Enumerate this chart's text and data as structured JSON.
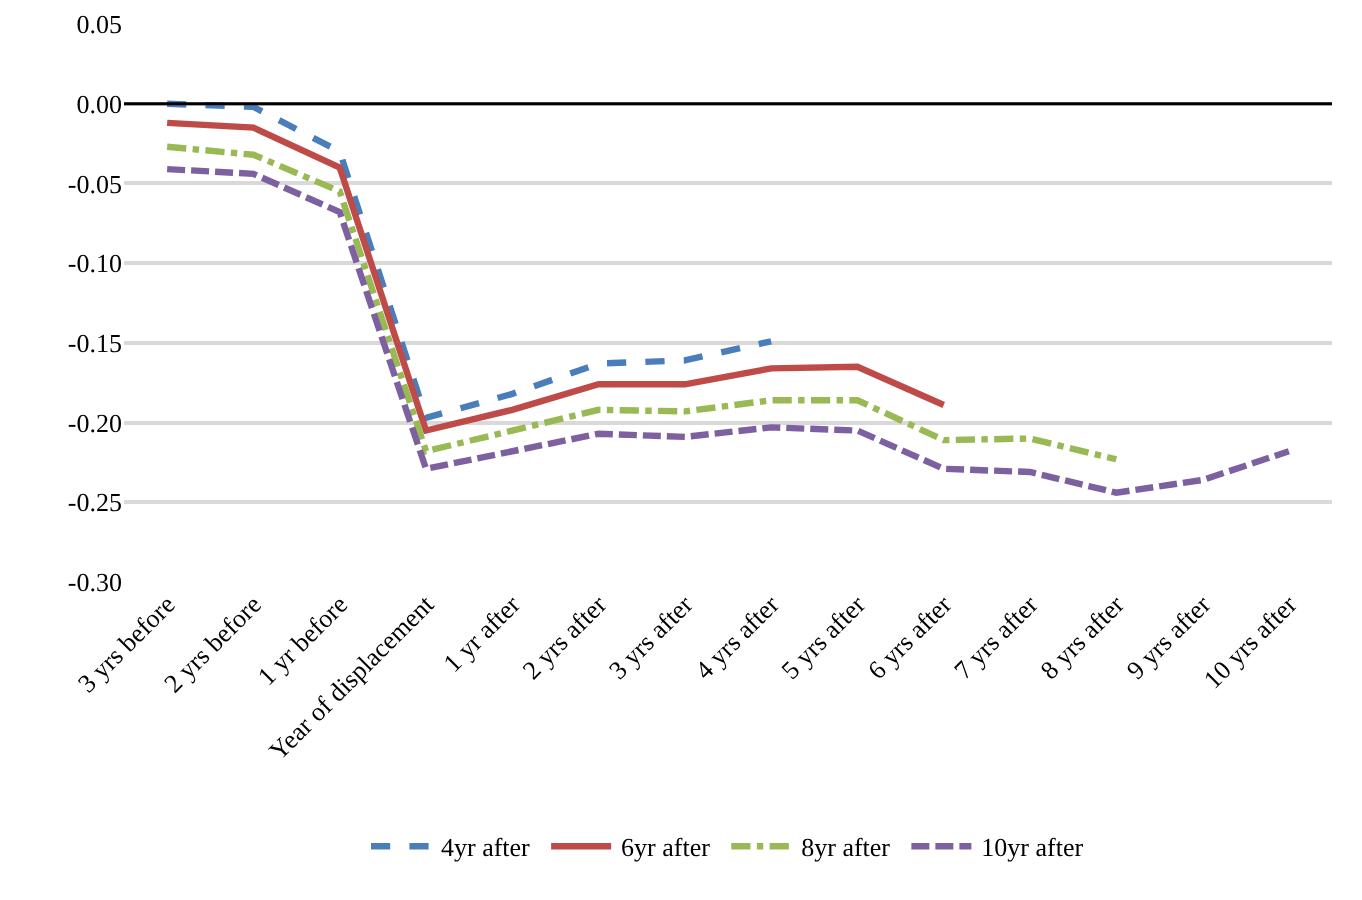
{
  "chart_data": {
    "type": "line",
    "categories": [
      "3 yrs before",
      "2 yrs before",
      "1 yr before",
      "Year of displacement",
      "1 yr after",
      "2 yrs after",
      "3 yrs after",
      "4 yrs after",
      "5 yrs after",
      "6 yrs after",
      "7 yrs after",
      "8 yrs after",
      "9 yrs after",
      "10 yrs after"
    ],
    "series": [
      {
        "name": "4yr after",
        "color": "#4a7ebb",
        "line_style": "dashed",
        "values": [
          0.0,
          -0.002,
          -0.03,
          -0.197,
          -0.182,
          -0.163,
          -0.161,
          -0.149,
          null,
          null,
          null,
          null,
          null,
          null
        ]
      },
      {
        "name": "6yr after",
        "color": "#be4b48",
        "line_style": "solid",
        "values": [
          -0.012,
          -0.015,
          -0.04,
          -0.205,
          -0.192,
          -0.176,
          -0.176,
          -0.166,
          -0.165,
          -0.189,
          null,
          null,
          null,
          null
        ]
      },
      {
        "name": "8yr after",
        "color": "#98b954",
        "line_style": "dashdot",
        "values": [
          -0.027,
          -0.032,
          -0.055,
          -0.218,
          -0.205,
          -0.192,
          -0.193,
          -0.186,
          -0.186,
          -0.211,
          -0.21,
          -0.223,
          null,
          null
        ]
      },
      {
        "name": "10yr after",
        "color": "#7d60a0",
        "line_style": "longdash",
        "values": [
          -0.041,
          -0.044,
          -0.068,
          -0.229,
          -0.218,
          -0.207,
          -0.209,
          -0.203,
          -0.205,
          -0.229,
          -0.231,
          -0.244,
          -0.236,
          -0.218
        ]
      }
    ],
    "ylim": [
      -0.3,
      0.05
    ],
    "yticks": [
      {
        "value": 0.05,
        "label": "0.05"
      },
      {
        "value": 0,
        "label": "0.00"
      },
      {
        "value": -0.05,
        "label": "-0.05"
      },
      {
        "value": -0.1,
        "label": "-0.10"
      },
      {
        "value": -0.15,
        "label": "-0.15"
      },
      {
        "value": -0.2,
        "label": "-0.20"
      },
      {
        "value": -0.25,
        "label": "-0.25"
      },
      {
        "value": -0.3,
        "label": "-0.30"
      }
    ],
    "ref_lines": [
      {
        "axis": "y",
        "value": 0,
        "color": "#000000"
      }
    ],
    "grid": "y",
    "legend": "bottom",
    "marker": "none"
  }
}
